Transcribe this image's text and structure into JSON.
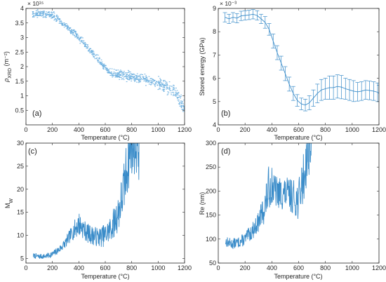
{
  "chart_data": [
    {
      "id": "a",
      "type": "scatter",
      "panel_label": "(a)",
      "xlabel": "Temperature (°C)",
      "ylabel_main": "ρ",
      "ylabel_sub": "XRD",
      "ylabel_unit": " (m⁻²)",
      "y_exponent_label": "× 10¹⁵",
      "xlim": [
        0,
        1200
      ],
      "ylim": [
        0,
        4
      ],
      "xticks": [
        0,
        200,
        400,
        600,
        800,
        1000,
        1200
      ],
      "yticks": [
        0.5,
        1,
        1.5,
        2,
        2.5,
        3,
        3.5,
        4
      ],
      "ytick_labels": [
        "0.5",
        "1",
        "1.5",
        "2",
        "2.5",
        "3",
        "3.5",
        "4"
      ],
      "color": "#6fb1e0",
      "trend": [
        [
          50,
          3.78
        ],
        [
          150,
          3.82
        ],
        [
          220,
          3.72
        ],
        [
          300,
          3.38
        ],
        [
          400,
          3.0
        ],
        [
          500,
          2.5
        ],
        [
          600,
          1.95
        ],
        [
          650,
          1.78
        ],
        [
          700,
          1.72
        ],
        [
          800,
          1.65
        ],
        [
          900,
          1.58
        ],
        [
          1000,
          1.42
        ],
        [
          1100,
          1.2
        ],
        [
          1150,
          1.0
        ],
        [
          1200,
          0.52
        ]
      ]
    },
    {
      "id": "b",
      "type": "line",
      "panel_label": "(b)",
      "xlabel": "Temperature (°C)",
      "ylabel": "Stored energy (GPa)",
      "y_exponent_label": "× 10⁻³",
      "xlim": [
        0,
        1200
      ],
      "ylim": [
        4,
        9
      ],
      "xticks": [
        0,
        200,
        400,
        600,
        800,
        1000,
        1200
      ],
      "yticks": [
        4,
        5,
        6,
        7,
        8,
        9
      ],
      "color": "#3a8cc9",
      "x": [
        50,
        80,
        110,
        140,
        170,
        200,
        230,
        260,
        290,
        320,
        350,
        380,
        410,
        440,
        470,
        500,
        530,
        560,
        590,
        620,
        650,
        680,
        710,
        740,
        770,
        800,
        830,
        860,
        890,
        920,
        950,
        980,
        1010,
        1040,
        1070,
        1100,
        1130,
        1160,
        1190,
        1200
      ],
      "y": [
        8.62,
        8.55,
        8.62,
        8.58,
        8.68,
        8.7,
        8.72,
        8.75,
        8.7,
        8.55,
        8.4,
        8.1,
        7.6,
        7.1,
        6.65,
        6.2,
        5.75,
        5.35,
        5.05,
        4.9,
        4.85,
        4.95,
        5.15,
        5.35,
        5.5,
        5.55,
        5.6,
        5.6,
        5.65,
        5.62,
        5.55,
        5.5,
        5.45,
        5.42,
        5.45,
        5.5,
        5.48,
        5.45,
        5.4,
        5.35
      ],
      "err": [
        0.2,
        0.2,
        0.2,
        0.2,
        0.2,
        0.2,
        0.2,
        0.2,
        0.2,
        0.2,
        0.25,
        0.25,
        0.3,
        0.3,
        0.3,
        0.3,
        0.3,
        0.3,
        0.25,
        0.25,
        0.25,
        0.3,
        0.35,
        0.4,
        0.45,
        0.45,
        0.5,
        0.5,
        0.5,
        0.5,
        0.45,
        0.45,
        0.45,
        0.4,
        0.4,
        0.4,
        0.4,
        0.4,
        0.4,
        0.35
      ]
    },
    {
      "id": "c",
      "type": "line",
      "panel_label": "(c)",
      "xlabel": "Temperature (°C)",
      "ylabel_main": "M",
      "ylabel_sub": "W",
      "xlim": [
        0,
        1200
      ],
      "ylim": [
        4,
        30
      ],
      "xticks": [
        0,
        200,
        400,
        600,
        800,
        1000,
        1200
      ],
      "yticks": [
        5,
        10,
        15,
        20,
        25,
        30
      ],
      "color": "#3a8cc9",
      "trend": [
        [
          55,
          5.6
        ],
        [
          100,
          5.4
        ],
        [
          150,
          5.5
        ],
        [
          200,
          5.9
        ],
        [
          250,
          6.9
        ],
        [
          300,
          8.4
        ],
        [
          350,
          10.6
        ],
        [
          400,
          12.5
        ],
        [
          430,
          11.6
        ],
        [
          460,
          10.6
        ],
        [
          500,
          10.0
        ],
        [
          550,
          9.6
        ],
        [
          600,
          10.0
        ],
        [
          650,
          11.8
        ],
        [
          700,
          15.0
        ],
        [
          740,
          20.0
        ],
        [
          770,
          26.0
        ],
        [
          800,
          30.0
        ],
        [
          840,
          30.0
        ],
        [
          860,
          28.0
        ]
      ],
      "amp": [
        0.4,
        0.4,
        0.4,
        0.5,
        0.6,
        0.8,
        1.2,
        2.0,
        1.6,
        1.5,
        1.5,
        1.5,
        1.8,
        2.2,
        3.0,
        4.0,
        5.0,
        5.0,
        5.0,
        5.0
      ]
    },
    {
      "id": "d",
      "type": "line",
      "panel_label": "(d)",
      "xlabel": "Temperature (°C)",
      "ylabel": "Re (nm)",
      "xlim": [
        0,
        1200
      ],
      "ylim": [
        50,
        300
      ],
      "xticks": [
        0,
        200,
        400,
        600,
        800,
        1000,
        1200
      ],
      "yticks": [
        50,
        100,
        150,
        200,
        250,
        300
      ],
      "color": "#3a8cc9",
      "trend": [
        [
          55,
          95
        ],
        [
          100,
          90
        ],
        [
          150,
          93
        ],
        [
          200,
          100
        ],
        [
          250,
          115
        ],
        [
          300,
          135
        ],
        [
          350,
          170
        ],
        [
          380,
          210
        ],
        [
          400,
          215
        ],
        [
          420,
          200
        ],
        [
          450,
          195
        ],
        [
          500,
          195
        ],
        [
          550,
          190
        ],
        [
          600,
          180
        ],
        [
          620,
          210
        ],
        [
          640,
          230
        ],
        [
          660,
          270
        ],
        [
          680,
          290
        ],
        [
          700,
          300
        ]
      ],
      "amp": [
        8,
        8,
        8,
        10,
        12,
        15,
        25,
        35,
        30,
        25,
        25,
        25,
        25,
        30,
        35,
        40,
        40,
        40,
        40
      ]
    }
  ]
}
